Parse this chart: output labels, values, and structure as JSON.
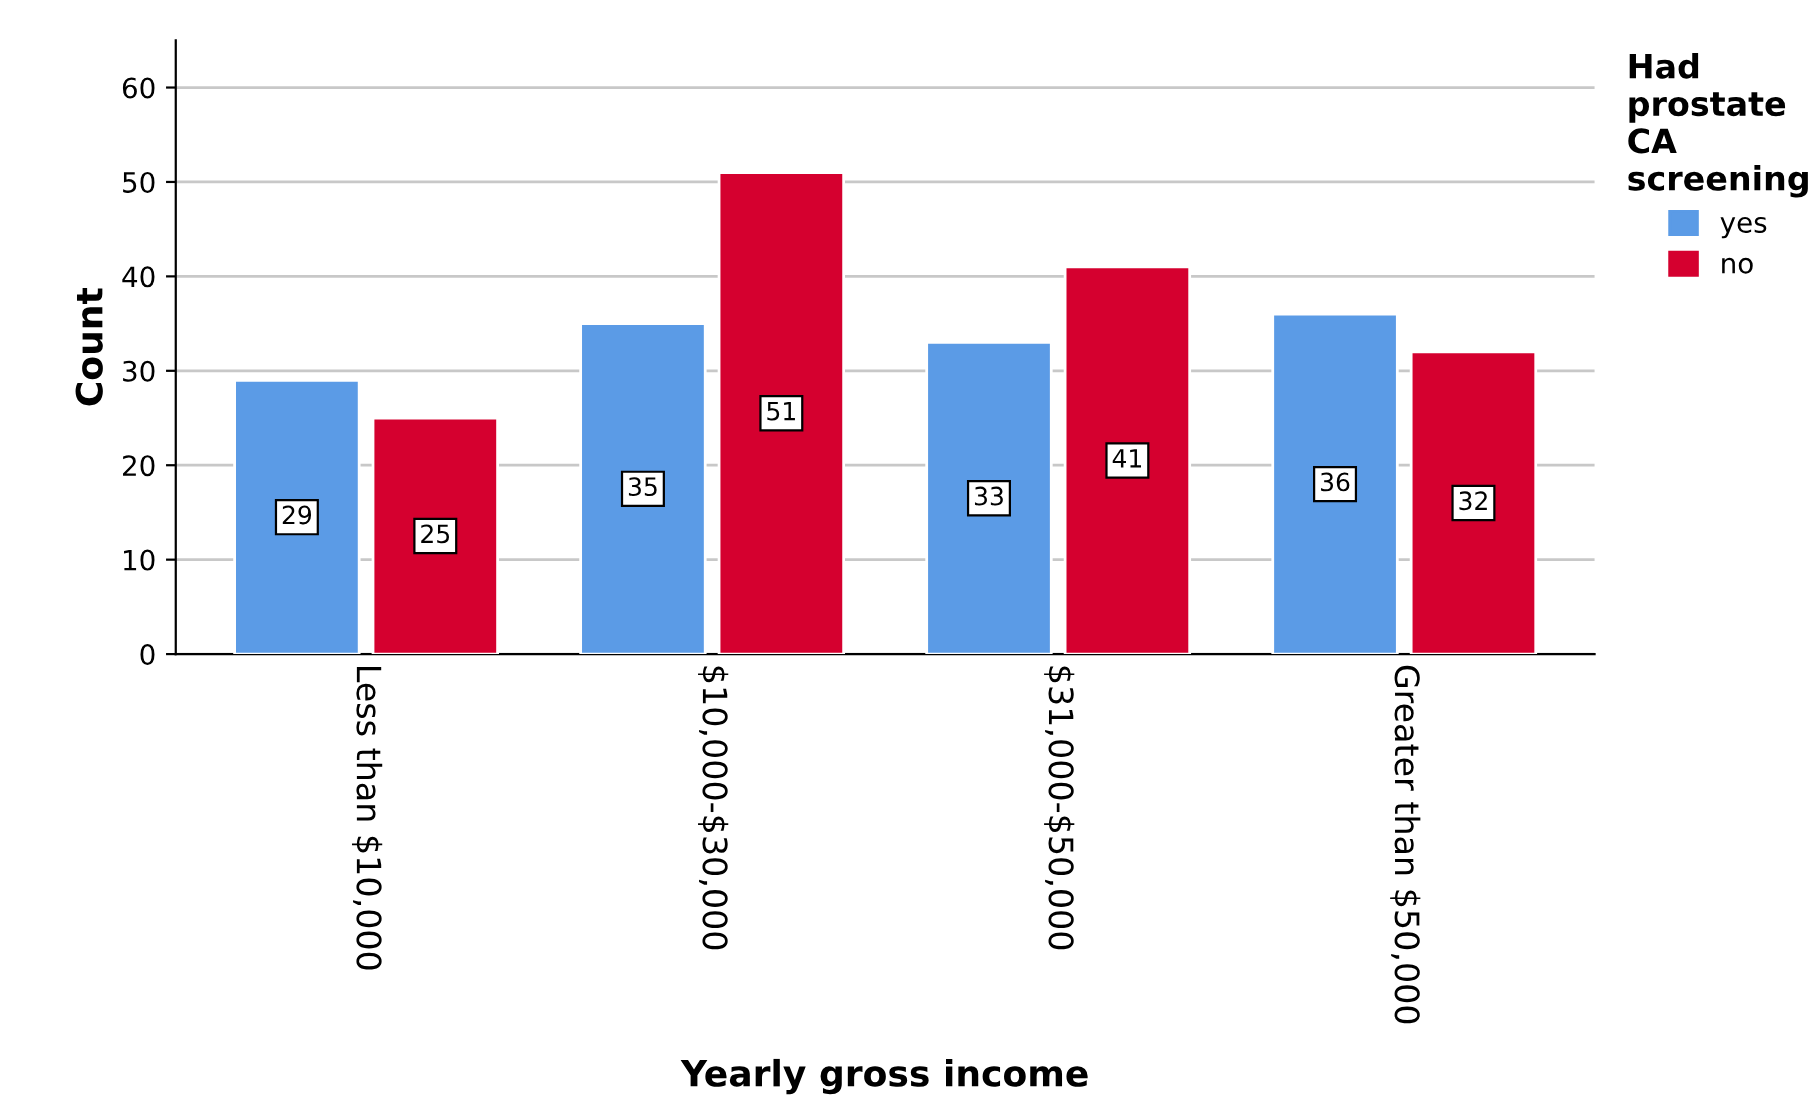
{
  "chart_data": {
    "type": "bar",
    "xlabel": "Yearly gross income",
    "ylabel": "Count",
    "legend_title": "Had prostate CA screening",
    "categories": [
      "Less than $10,000",
      "$10,000-$30,000",
      "$31,000-$50,000",
      "Greater than $50,000"
    ],
    "series": [
      {
        "name": "yes",
        "color": "#5b9be6",
        "values": [
          29,
          35,
          33,
          36
        ]
      },
      {
        "name": "no",
        "color": "#d5002f",
        "values": [
          25,
          51,
          41,
          32
        ]
      }
    ],
    "ylim": [
      0,
      65
    ],
    "yticks": [
      0,
      10,
      20,
      30,
      40,
      50,
      60
    ],
    "grid": "y",
    "legend": "top right",
    "data_labels": true
  }
}
